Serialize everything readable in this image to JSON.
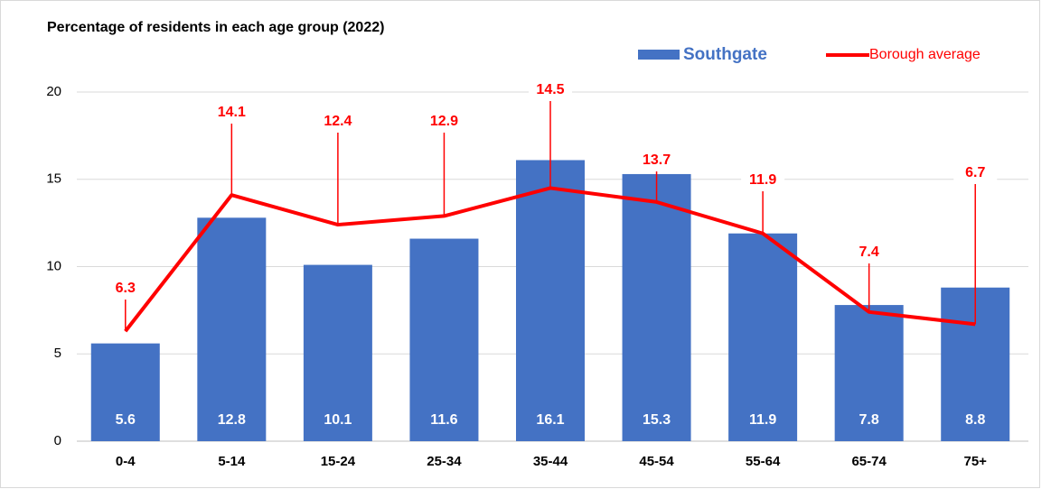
{
  "chart_data": {
    "type": "bar",
    "title": "Percentage of residents in each age group (2022)",
    "categories": [
      "0-4",
      "5-14",
      "15-24",
      "25-34",
      "35-44",
      "45-54",
      "55-64",
      "65-74",
      "75+"
    ],
    "series": [
      {
        "name": "Southgate",
        "type": "bar",
        "color": "#4472c4",
        "values": [
          5.6,
          12.8,
          10.1,
          11.6,
          16.1,
          15.3,
          11.9,
          7.8,
          8.8
        ]
      },
      {
        "name": "Borough average",
        "type": "line",
        "color": "#ff0000",
        "values": [
          6.3,
          14.1,
          12.4,
          12.9,
          14.5,
          13.7,
          11.9,
          7.4,
          6.7
        ]
      }
    ],
    "ylim": [
      0,
      20
    ],
    "yticks": [
      0,
      5,
      10,
      15,
      20
    ],
    "grid": true,
    "legend": "top-right"
  }
}
